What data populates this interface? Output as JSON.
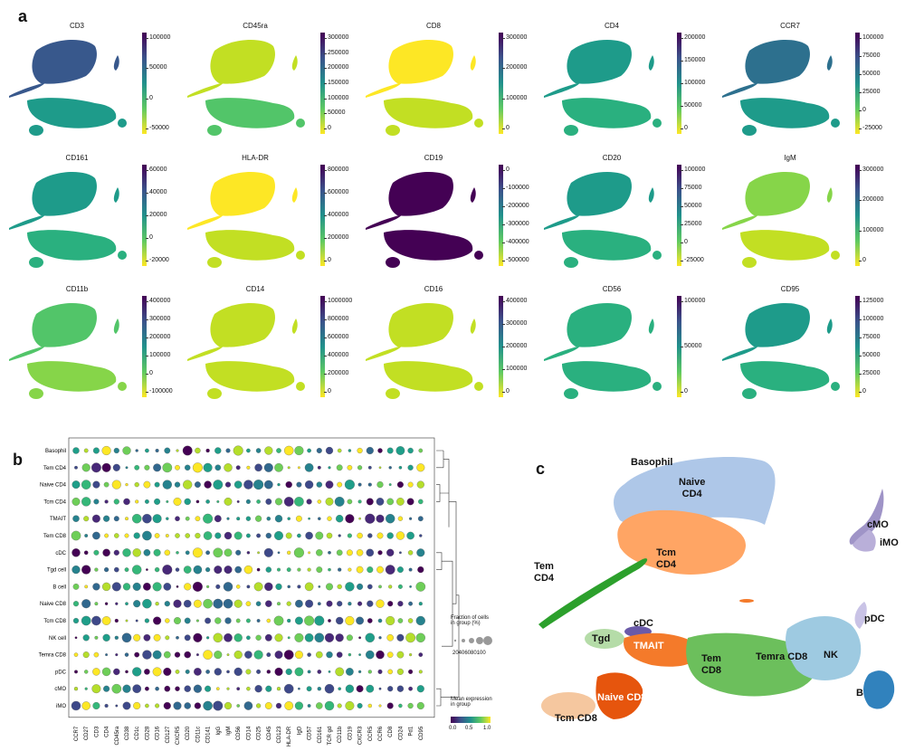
{
  "panels": {
    "a": "a",
    "b": "b",
    "c": "c"
  },
  "panel_a": {
    "plots": [
      {
        "title": "CD3",
        "ticks": [
          "100000",
          "50000",
          "0",
          "-50000"
        ]
      },
      {
        "title": "CD45ra",
        "ticks": [
          "300000",
          "250000",
          "200000",
          "150000",
          "100000",
          "50000",
          "0"
        ]
      },
      {
        "title": "CD8",
        "ticks": [
          "300000",
          "200000",
          "100000",
          "0"
        ]
      },
      {
        "title": "CD4",
        "ticks": [
          "200000",
          "150000",
          "100000",
          "50000",
          "0"
        ]
      },
      {
        "title": "CCR7",
        "ticks": [
          "100000",
          "75000",
          "50000",
          "25000",
          "0",
          "-25000"
        ]
      },
      {
        "title": "CD161",
        "ticks": [
          "60000",
          "40000",
          "20000",
          "0",
          "-20000"
        ]
      },
      {
        "title": "HLA-DR",
        "ticks": [
          "800000",
          "600000",
          "400000",
          "200000",
          "0"
        ]
      },
      {
        "title": "CD19",
        "ticks": [
          "0",
          "-100000",
          "-200000",
          "-300000",
          "-400000",
          "-500000"
        ]
      },
      {
        "title": "CD20",
        "ticks": [
          "100000",
          "75000",
          "50000",
          "25000",
          "0",
          "-25000"
        ]
      },
      {
        "title": "IgM",
        "ticks": [
          "300000",
          "200000",
          "100000",
          "0"
        ]
      },
      {
        "title": "CD11b",
        "ticks": [
          "400000",
          "300000",
          "200000",
          "100000",
          "0",
          "-100000"
        ]
      },
      {
        "title": "CD14",
        "ticks": [
          "1000000",
          "800000",
          "600000",
          "400000",
          "200000",
          "0"
        ]
      },
      {
        "title": "CD16",
        "ticks": [
          "400000",
          "300000",
          "200000",
          "100000",
          "0"
        ]
      },
      {
        "title": "CD56",
        "ticks": [
          "100000",
          "50000",
          "0"
        ]
      },
      {
        "title": "CD95",
        "ticks": [
          "125000",
          "100000",
          "75000",
          "50000",
          "25000",
          "0"
        ]
      }
    ]
  },
  "panel_b": {
    "rows": [
      "Basophil",
      "Tem CD4",
      "Naive CD4",
      "Tcm  CD4",
      "TMAIT",
      "Tem CD8",
      "cDC",
      "Tgd cell",
      "B cell",
      "Naive CD8",
      "Tcm CD8",
      "NK cell",
      "Temra CD8",
      "pDC",
      "cMO",
      "iMO"
    ],
    "columns": [
      "CCR7",
      "CD27",
      "CD3",
      "CD4",
      "CD45ra",
      "CD38",
      "CD1c",
      "CD28",
      "CD16",
      "CD127",
      "CXCR5",
      "CD20",
      "CD11c",
      "CD141",
      "IgG",
      "IgM",
      "CD56",
      "CD14",
      "CD25",
      "CD45",
      "CD123",
      "HLA-DR",
      "IgD",
      "CD57",
      "CD161",
      "TCR gd",
      "CD11b",
      "CD19",
      "CXCR3",
      "CCR5",
      "CCR6",
      "CD8",
      "CD24",
      "Pd1",
      "CD95"
    ],
    "size_legend_title": "Fraction of cells\nin group (%)",
    "size_legend_ticks": "20406080100",
    "color_legend_title": "Mean expression\nin group",
    "color_legend_ticks": [
      "0.0",
      "0.5",
      "1.0"
    ]
  },
  "panel_c": {
    "labels": [
      {
        "text": "Basophil"
      },
      {
        "text": "Naive\nCD4"
      },
      {
        "text": "Tcm\nCD4"
      },
      {
        "text": "Tem\nCD4"
      },
      {
        "text": "cMO"
      },
      {
        "text": "iMO"
      },
      {
        "text": "cDC"
      },
      {
        "text": "pDC"
      },
      {
        "text": "Tgd"
      },
      {
        "text": "TMAIT"
      },
      {
        "text": "Tem\nCD8"
      },
      {
        "text": "Temra CD8"
      },
      {
        "text": "NK"
      },
      {
        "text": "Naive CD8"
      },
      {
        "text": "Tcm CD8"
      },
      {
        "text": "B"
      }
    ],
    "colors": {
      "Basophil": "#ffffff",
      "Naive CD4": "#aec7e8",
      "Tcm CD4": "#ffa564",
      "Tem CD4": "#2ca02c",
      "cMO": "#9f94c7",
      "iMO": "#b9afd9",
      "cDC": "#6a5aa8",
      "pDC": "#c9c3e6",
      "Tgd": "#b5dca8",
      "TMAIT": "#f47a2a",
      "Tem CD8": "#6cbf5c",
      "Temra CD8": "#9ecae1",
      "NK": "#9ecae1",
      "Naive CD8": "#e6550d",
      "Tcm CD8": "#f5c79f",
      "B": "#3182bd"
    }
  }
}
